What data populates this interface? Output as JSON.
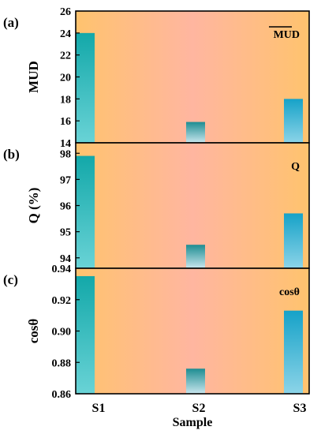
{
  "colors": {
    "bg_left": "#FFC36E",
    "bg_mid": "#FFB6A0",
    "bg_right": "#FFC36E",
    "bar_s1_top": "#13A8A9",
    "bar_s1_bottom": "#69D3D6",
    "bar_s2_top": "#1E8D92",
    "bar_s2_bottom": "#C9E6EE",
    "bar_s3_top": "#16A2C8",
    "bar_s3_bottom": "#8CD4E8"
  },
  "shared_x": {
    "categories": [
      "S1",
      "S2",
      "S3"
    ],
    "xlabel": "Sample"
  },
  "chart_data": [
    {
      "type": "bar",
      "panel_label": "(a)",
      "legend": "MUD",
      "legend_overline": true,
      "legend_position": "top-right",
      "ylabel": "MUD",
      "categories": [
        "S1",
        "S2",
        "S3"
      ],
      "values": [
        24.0,
        15.9,
        18.0
      ],
      "ylim": [
        14,
        26
      ],
      "yticks": [
        14,
        16,
        18,
        20,
        22,
        24,
        26
      ],
      "tick_decimals": 0,
      "grid": false
    },
    {
      "type": "bar",
      "panel_label": "(b)",
      "legend": "Q",
      "legend_overline": false,
      "legend_position": "top-right",
      "ylabel": "Q (%)",
      "categories": [
        "S1",
        "S2",
        "S3"
      ],
      "values": [
        97.9,
        94.5,
        95.7
      ],
      "ylim": [
        93.6,
        98.4
      ],
      "yticks": [
        94,
        95,
        96,
        97,
        98
      ],
      "tick_decimals": 0,
      "grid": false
    },
    {
      "type": "bar",
      "panel_label": "(c)",
      "legend": "cosθ",
      "legend_overline": false,
      "legend_position": "top-right",
      "ylabel": "cosθ",
      "categories": [
        "S1",
        "S2",
        "S3"
      ],
      "values": [
        0.935,
        0.876,
        0.913
      ],
      "ylim": [
        0.86,
        0.94
      ],
      "yticks": [
        0.86,
        0.88,
        0.9,
        0.92,
        0.94
      ],
      "tick_decimals": 2,
      "grid": false
    }
  ]
}
